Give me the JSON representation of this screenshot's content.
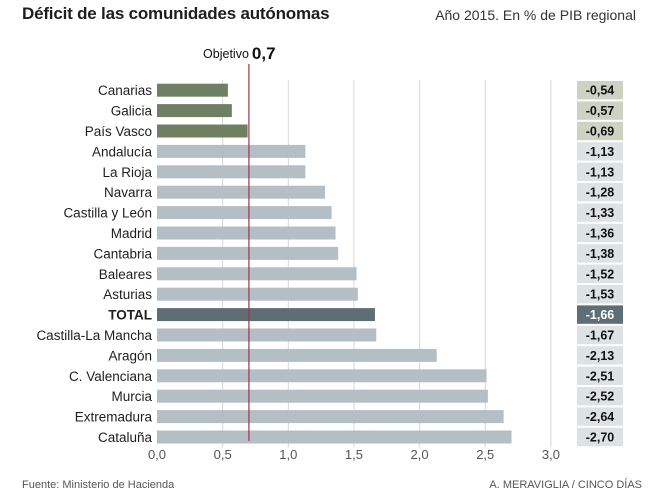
{
  "header": {
    "title": "Déficit de las comunidades autónomas",
    "subtitle": "Año 2015. En % de PIB regional"
  },
  "footer": {
    "source": "Fuente: Ministerio de Hacienda",
    "credit": "A. MERAVIGLIA / CINCO DÍAS"
  },
  "colors": {
    "below_target": "#6e7f62",
    "above_target": "#b4bec5",
    "total": "#5e6e74",
    "target_line": "#a0334a",
    "value_box_light": "#dde3e5",
    "value_box_green": "#ccd3c2",
    "gridline": "#d4d8da"
  },
  "chart_data": {
    "type": "bar",
    "orientation": "horizontal",
    "categories": [
      "Canarias",
      "Galicia",
      "País Vasco",
      "Andalucía",
      "La Rioja",
      "Navarra",
      "Castilla y León",
      "Madrid",
      "Cantabria",
      "Baleares",
      "Asturias",
      "TOTAL",
      "Castilla-La Mancha",
      "Aragón",
      "C. Valenciana",
      "Murcia",
      "Extremadura",
      "Cataluña"
    ],
    "values": [
      0.54,
      0.57,
      0.69,
      1.13,
      1.13,
      1.28,
      1.33,
      1.36,
      1.38,
      1.52,
      1.53,
      1.66,
      1.67,
      2.13,
      2.51,
      2.52,
      2.64,
      2.7
    ],
    "value_labels": [
      "-0,54",
      "-0,57",
      "-0,69",
      "-1,13",
      "-1,13",
      "-1,28",
      "-1,33",
      "-1,36",
      "-1,38",
      "-1,52",
      "-1,53",
      "-1,66",
      "-1,67",
      "-2,13",
      "-2,51",
      "-2,52",
      "-2,64",
      "-2,70"
    ],
    "highlight_category": "TOTAL",
    "xlim": [
      0,
      3.0
    ],
    "xticks": [
      0,
      0.5,
      1.0,
      1.5,
      2.0,
      2.5,
      3.0
    ],
    "xtick_labels": [
      "0,0",
      "0,5",
      "1,0",
      "1,5",
      "2,0",
      "2,5",
      "3,0"
    ],
    "grid": true,
    "target": {
      "label": "Objetivo",
      "value_label": "0,7",
      "value": 0.7
    }
  }
}
